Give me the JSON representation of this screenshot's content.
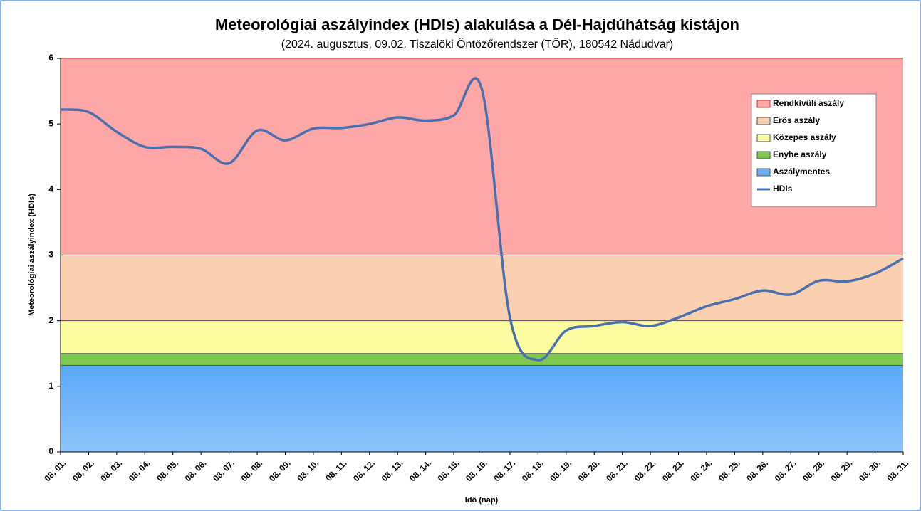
{
  "chart_data": {
    "type": "line",
    "title": "Meteorológiai aszályindex (HDIs) alakulása a Dél-Hajdúhátság kistájon",
    "subtitle": "(2024. augusztus, 09.02. Tiszalöki Öntözőrendszer (TÖR), 180542 Nádudvar)",
    "x_label": "Idő (nap)",
    "y_label": "Meteorológiai aszályindex (HDIs)",
    "categories": [
      "08. 01.",
      "08. 02.",
      "08. 03.",
      "08. 04.",
      "08. 05.",
      "08. 06.",
      "08. 07.",
      "08. 08.",
      "08. 09.",
      "08. 10.",
      "08. 11.",
      "08. 12.",
      "08. 13.",
      "08. 14.",
      "08. 15.",
      "08. 16.",
      "08. 17.",
      "08. 18.",
      "08. 19.",
      "08. 20.",
      "08. 21.",
      "08. 22.",
      "08. 23.",
      "08. 24.",
      "08. 25.",
      "08. 26.",
      "08. 27.",
      "08. 28.",
      "08. 29.",
      "08. 30.",
      "08. 31."
    ],
    "bands": [
      {
        "name": "Rendkívüli aszály",
        "color": "#ffa6a6",
        "edge": "#e03030",
        "from": 3,
        "to": 6
      },
      {
        "name": "Erős aszály",
        "color": "#fbd0b0",
        "edge": "#555555",
        "from": 2,
        "to": 3
      },
      {
        "name": "Közepes aszály",
        "color": "#fbfba0",
        "edge": "#555555",
        "from": 1.5,
        "to": 2
      },
      {
        "name": "Enyhe aszály",
        "color": "#7ec850",
        "edge": "#555555",
        "from": 1.32,
        "to": 1.5
      },
      {
        "name": "Aszálymentes",
        "color": "#6ab0f8",
        "edge": "#555555",
        "from": 0,
        "to": 1.32
      }
    ],
    "series": [
      {
        "name": "HDIs",
        "color": "#4a70b0",
        "values": [
          5.22,
          5.18,
          4.88,
          4.65,
          4.65,
          4.62,
          4.4,
          4.9,
          4.75,
          4.93,
          4.94,
          5.0,
          5.1,
          5.05,
          5.13,
          5.53,
          2.05,
          1.4,
          1.85,
          1.92,
          1.98,
          1.92,
          2.05,
          2.22,
          2.33,
          2.46,
          2.4,
          2.61,
          2.6,
          2.72,
          2.95
        ]
      }
    ],
    "ylim": [
      0,
      6
    ],
    "yticks": [
      0,
      1,
      2,
      3,
      4,
      5,
      6
    ]
  }
}
